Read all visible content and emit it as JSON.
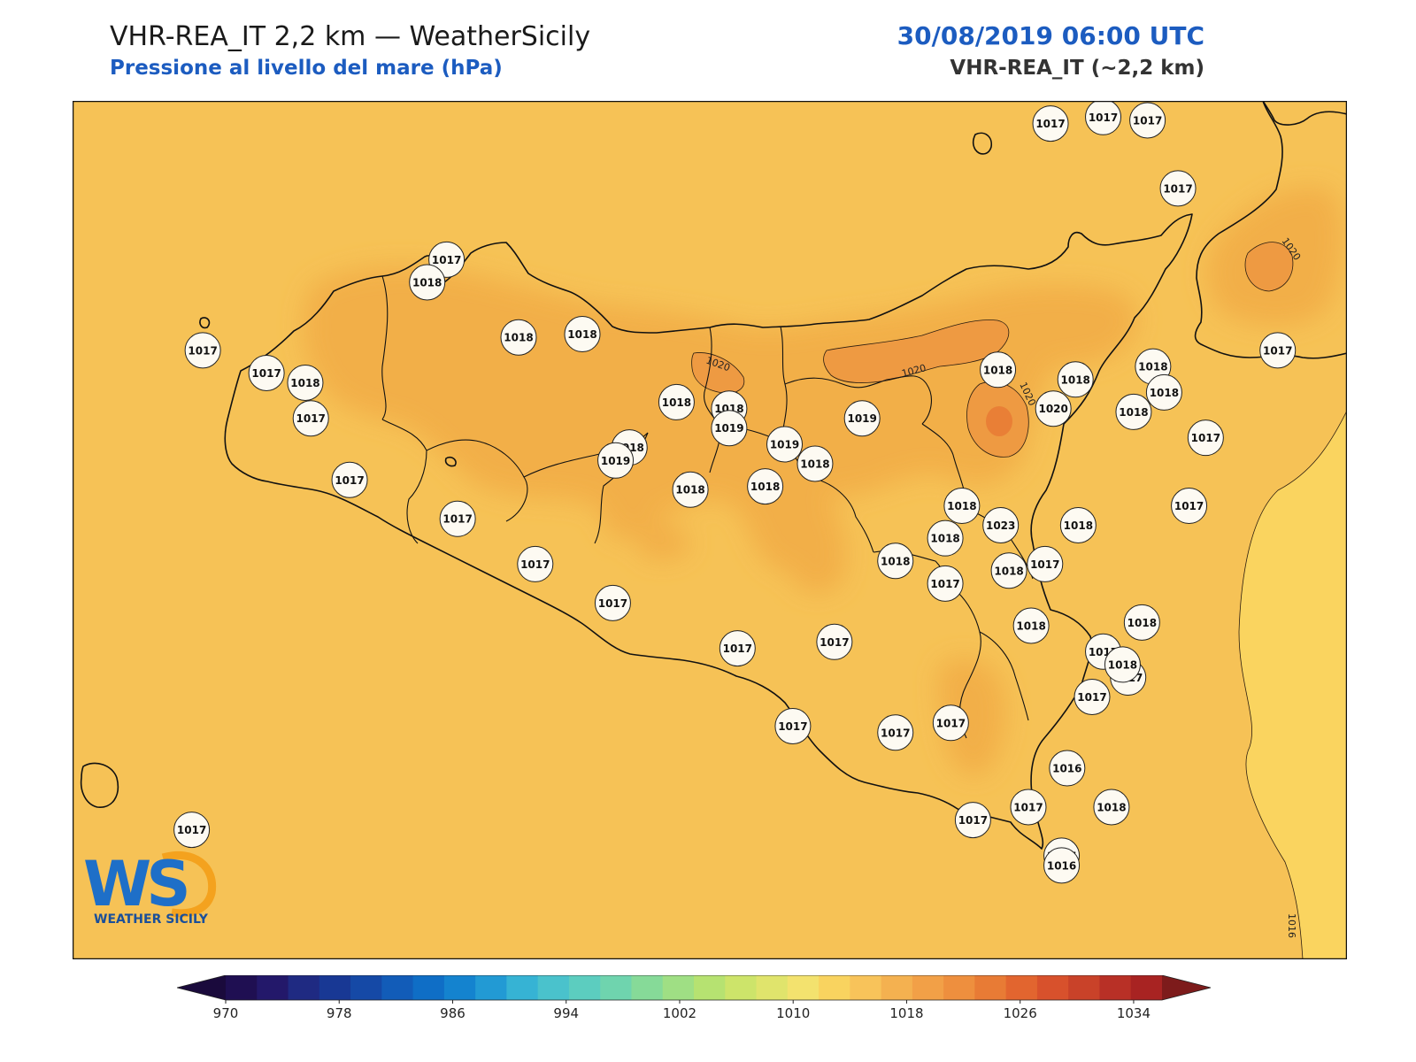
{
  "header": {
    "title": "VHR-REA_IT 2,2 km — WeatherSicily",
    "subtitle": "Pressione al livello del mare (hPa)",
    "datetime": "30/08/2019 06:00 UTC",
    "model": "VHR-REA_IT (~2,2 km)"
  },
  "map": {
    "contour_labels": [
      "1020",
      "1020",
      "1020",
      "1020",
      "1016"
    ],
    "stations": [
      {
        "name": "st1",
        "value": "1017",
        "lon": 15.18,
        "lat": 38.98
      },
      {
        "name": "st2",
        "value": "1017",
        "lon": 15.37,
        "lat": 39.0
      },
      {
        "name": "st3",
        "value": "1017",
        "lon": 15.53,
        "lat": 38.99
      },
      {
        "name": "st4",
        "value": "1017",
        "lon": 15.64,
        "lat": 38.78
      },
      {
        "name": "st5",
        "value": "1017",
        "lon": 12.12,
        "lat": 38.28
      },
      {
        "name": "st6",
        "value": "1017",
        "lon": 12.35,
        "lat": 38.21
      },
      {
        "name": "st7",
        "value": "1017",
        "lon": 12.51,
        "lat": 38.07
      },
      {
        "name": "st8",
        "value": "1017",
        "lon": 12.65,
        "lat": 37.88
      },
      {
        "name": "st9",
        "value": "1017",
        "lon": 13.0,
        "lat": 38.56
      },
      {
        "name": "st10",
        "value": "1017",
        "lon": 13.04,
        "lat": 37.76
      },
      {
        "name": "st11",
        "value": "1017",
        "lon": 13.32,
        "lat": 37.62
      },
      {
        "name": "st12",
        "value": "1017",
        "lon": 13.6,
        "lat": 37.5
      },
      {
        "name": "st13",
        "value": "1017",
        "lon": 14.05,
        "lat": 37.36
      },
      {
        "name": "st14",
        "value": "1017",
        "lon": 14.4,
        "lat": 37.38
      },
      {
        "name": "st15",
        "value": "1017",
        "lon": 14.25,
        "lat": 37.12
      },
      {
        "name": "st16",
        "value": "1017",
        "lon": 14.62,
        "lat": 37.1
      },
      {
        "name": "st17",
        "value": "1017",
        "lon": 14.82,
        "lat": 37.13
      },
      {
        "name": "st18",
        "value": "1017",
        "lon": 14.8,
        "lat": 37.56
      },
      {
        "name": "st19",
        "value": "1017",
        "lon": 14.9,
        "lat": 36.83
      },
      {
        "name": "st20",
        "value": "1017",
        "lon": 15.1,
        "lat": 36.87
      },
      {
        "name": "st21",
        "value": "1017",
        "lon": 15.22,
        "lat": 36.72
      },
      {
        "name": "st22",
        "value": "1017",
        "lon": 15.37,
        "lat": 37.35
      },
      {
        "name": "st23",
        "value": "1017",
        "lon": 15.46,
        "lat": 37.27
      },
      {
        "name": "st24",
        "value": "1017",
        "lon": 15.16,
        "lat": 37.62
      },
      {
        "name": "st25",
        "value": "1017",
        "lon": 15.33,
        "lat": 37.21
      },
      {
        "name": "st26",
        "value": "1017",
        "lon": 15.68,
        "lat": 37.8
      },
      {
        "name": "st27",
        "value": "1017",
        "lon": 15.74,
        "lat": 38.01
      },
      {
        "name": "st28",
        "value": "1017",
        "lon": 16.0,
        "lat": 38.28
      },
      {
        "name": "st29",
        "value": "1017",
        "lon": 12.08,
        "lat": 36.8
      },
      {
        "name": "st30",
        "value": "1018",
        "lon": 12.49,
        "lat": 38.18
      },
      {
        "name": "st31",
        "value": "1018",
        "lon": 12.93,
        "lat": 38.49
      },
      {
        "name": "st32",
        "value": "1018",
        "lon": 13.26,
        "lat": 38.32
      },
      {
        "name": "st33",
        "value": "1018",
        "lon": 13.49,
        "lat": 38.33
      },
      {
        "name": "st34",
        "value": "1018",
        "lon": 13.83,
        "lat": 38.12
      },
      {
        "name": "st35",
        "value": "1018",
        "lon": 13.66,
        "lat": 37.98
      },
      {
        "name": "st36",
        "value": "1018",
        "lon": 14.02,
        "lat": 38.1
      },
      {
        "name": "st37",
        "value": "1018",
        "lon": 14.33,
        "lat": 37.93
      },
      {
        "name": "st38",
        "value": "1018",
        "lon": 14.62,
        "lat": 37.63
      },
      {
        "name": "st39",
        "value": "1018",
        "lon": 14.86,
        "lat": 37.8
      },
      {
        "name": "st40",
        "value": "1018",
        "lon": 14.99,
        "lat": 38.22
      },
      {
        "name": "st41",
        "value": "1018",
        "lon": 15.27,
        "lat": 38.19
      },
      {
        "name": "st42",
        "value": "1018",
        "lon": 15.48,
        "lat": 38.09
      },
      {
        "name": "st43",
        "value": "1018",
        "lon": 15.55,
        "lat": 38.23
      },
      {
        "name": "st44",
        "value": "1018",
        "lon": 15.59,
        "lat": 38.15
      },
      {
        "name": "st45",
        "value": "1018",
        "lon": 15.51,
        "lat": 37.44
      },
      {
        "name": "st46",
        "value": "1018",
        "lon": 15.44,
        "lat": 37.31
      },
      {
        "name": "st47",
        "value": "1018",
        "lon": 15.11,
        "lat": 37.43
      },
      {
        "name": "st48",
        "value": "1018",
        "lon": 15.28,
        "lat": 37.74
      },
      {
        "name": "st49",
        "value": "1018",
        "lon": 14.8,
        "lat": 37.7
      },
      {
        "name": "st50",
        "value": "1018",
        "lon": 15.03,
        "lat": 37.6
      },
      {
        "name": "st51",
        "value": "1018",
        "lon": 15.4,
        "lat": 36.87
      },
      {
        "name": "st52",
        "value": "1018",
        "lon": 13.88,
        "lat": 37.85
      },
      {
        "name": "st53",
        "value": "1018",
        "lon": 14.15,
        "lat": 37.86
      },
      {
        "name": "st54",
        "value": "1019",
        "lon": 13.61,
        "lat": 37.94
      },
      {
        "name": "st55",
        "value": "1019",
        "lon": 14.02,
        "lat": 38.04
      },
      {
        "name": "st56",
        "value": "1019",
        "lon": 14.22,
        "lat": 37.99
      },
      {
        "name": "st57",
        "value": "1019",
        "lon": 14.5,
        "lat": 38.07
      },
      {
        "name": "st58",
        "value": "1020",
        "lon": 15.19,
        "lat": 38.1
      },
      {
        "name": "st59",
        "value": "1023",
        "lon": 15.0,
        "lat": 37.74
      },
      {
        "name": "st60",
        "value": "1016",
        "lon": 15.24,
        "lat": 36.99
      },
      {
        "name": "st61",
        "value": "1016",
        "lon": 15.22,
        "lat": 36.69
      }
    ]
  },
  "colorbar": {
    "tick_labels": [
      "970",
      "978",
      "986",
      "994",
      "1002",
      "1010",
      "1018",
      "1026",
      "1034"
    ],
    "colors": [
      "#1f0f52",
      "#23186a",
      "#1f2a82",
      "#183894",
      "#1549a6",
      "#125cb8",
      "#0f6ec6",
      "#1483cf",
      "#229ad4",
      "#36b3d4",
      "#4ac2cc",
      "#5ccdbf",
      "#6fd4ae",
      "#86da98",
      "#9fdf84",
      "#b6e271",
      "#cde46a",
      "#e0e46c",
      "#f3e26e",
      "#f9d35f",
      "#f8c35a",
      "#f4b150",
      "#f2a047",
      "#ee8f3e",
      "#e87b35",
      "#e2652f",
      "#d8512c",
      "#c94229",
      "#b83026",
      "#a82322"
    ],
    "under_color": "#1a0a3c",
    "over_color": "#7d1b1b"
  },
  "logo": {
    "letters": "WS",
    "text": "WEATHER SICILY"
  }
}
